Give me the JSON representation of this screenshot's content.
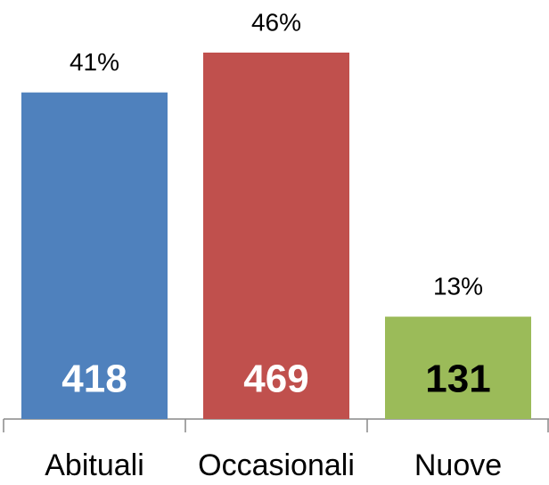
{
  "chart_data": {
    "type": "bar",
    "categories": [
      "Abituali",
      "Occasionali",
      "Nuove"
    ],
    "values": [
      418,
      469,
      131
    ],
    "colors": [
      "#4f81bd",
      "#c0504d",
      "#9bbb59"
    ],
    "label_colors": [
      "#ffffff",
      "#ffffff",
      "#000000"
    ],
    "shares": [
      41,
      46,
      13
    ],
    "share_labels": [
      "41%",
      "46%",
      "13%"
    ]
  }
}
